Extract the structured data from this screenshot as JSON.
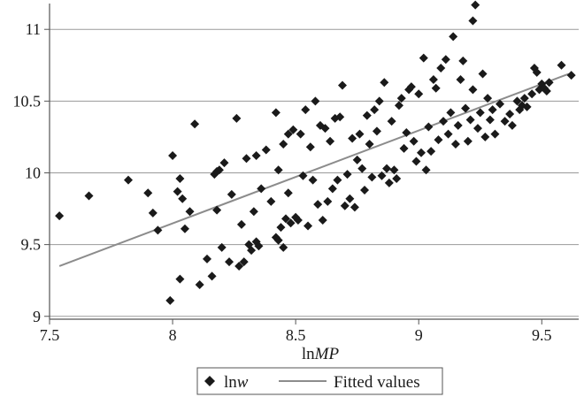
{
  "chart_data": {
    "type": "scatter",
    "title": "",
    "xlabel": {
      "prefix": "ln",
      "italic": "MP"
    },
    "ylabel": "",
    "xlim": [
      7.5,
      9.65
    ],
    "ylim": [
      8.98,
      11.18
    ],
    "x_ticks": [
      "7.5",
      "8",
      "8.5",
      "9",
      "9.5"
    ],
    "y_ticks": [
      "9",
      "9.5",
      "10",
      "10.5",
      "11"
    ],
    "grid": "horizontal",
    "legend_position": "bottom",
    "colors": {
      "points": "#1a1a1a",
      "fit_line": "#8c8c8c",
      "grid": "#9a9a9a"
    },
    "series": [
      {
        "name": {
          "prefix": "ln",
          "italic": "w"
        },
        "kind": "scatter",
        "marker": "diamond",
        "points": [
          [
            7.54,
            9.7
          ],
          [
            7.66,
            9.84
          ],
          [
            7.82,
            9.95
          ],
          [
            7.9,
            9.86
          ],
          [
            7.92,
            9.72
          ],
          [
            7.94,
            9.6
          ],
          [
            7.99,
            9.11
          ],
          [
            8.0,
            10.12
          ],
          [
            8.02,
            9.87
          ],
          [
            8.03,
            9.26
          ],
          [
            8.03,
            9.96
          ],
          [
            8.04,
            9.82
          ],
          [
            8.05,
            9.61
          ],
          [
            8.07,
            9.73
          ],
          [
            8.09,
            10.34
          ],
          [
            8.11,
            9.22
          ],
          [
            8.14,
            9.4
          ],
          [
            8.16,
            9.28
          ],
          [
            8.17,
            9.99
          ],
          [
            8.18,
            10.01
          ],
          [
            8.18,
            9.74
          ],
          [
            8.19,
            10.02
          ],
          [
            8.2,
            9.48
          ],
          [
            8.21,
            10.07
          ],
          [
            8.23,
            9.38
          ],
          [
            8.24,
            9.85
          ],
          [
            8.26,
            10.38
          ],
          [
            8.27,
            9.35
          ],
          [
            8.28,
            9.64
          ],
          [
            8.29,
            9.38
          ],
          [
            8.3,
            10.1
          ],
          [
            8.31,
            9.5
          ],
          [
            8.32,
            9.46
          ],
          [
            8.33,
            9.73
          ],
          [
            8.34,
            10.12
          ],
          [
            8.34,
            9.52
          ],
          [
            8.35,
            9.49
          ],
          [
            8.36,
            9.89
          ],
          [
            8.38,
            10.16
          ],
          [
            8.4,
            9.8
          ],
          [
            8.42,
            10.42
          ],
          [
            8.42,
            9.55
          ],
          [
            8.43,
            10.02
          ],
          [
            8.43,
            9.53
          ],
          [
            8.44,
            9.62
          ],
          [
            8.45,
            10.2
          ],
          [
            8.45,
            9.48
          ],
          [
            8.46,
            9.68
          ],
          [
            8.47,
            10.27
          ],
          [
            8.47,
            9.86
          ],
          [
            8.48,
            9.65
          ],
          [
            8.49,
            10.3
          ],
          [
            8.5,
            9.69
          ],
          [
            8.51,
            9.67
          ],
          [
            8.52,
            10.27
          ],
          [
            8.53,
            9.98
          ],
          [
            8.54,
            10.44
          ],
          [
            8.55,
            9.63
          ],
          [
            8.56,
            10.18
          ],
          [
            8.57,
            9.95
          ],
          [
            8.58,
            10.5
          ],
          [
            8.59,
            9.78
          ],
          [
            8.6,
            10.33
          ],
          [
            8.61,
            9.67
          ],
          [
            8.62,
            10.31
          ],
          [
            8.63,
            9.8
          ],
          [
            8.64,
            10.22
          ],
          [
            8.65,
            9.89
          ],
          [
            8.66,
            10.38
          ],
          [
            8.67,
            9.95
          ],
          [
            8.68,
            10.39
          ],
          [
            8.69,
            10.61
          ],
          [
            8.7,
            9.77
          ],
          [
            8.71,
            9.99
          ],
          [
            8.72,
            9.82
          ],
          [
            8.73,
            10.24
          ],
          [
            8.74,
            9.76
          ],
          [
            8.75,
            10.09
          ],
          [
            8.76,
            10.27
          ],
          [
            8.77,
            10.03
          ],
          [
            8.78,
            9.88
          ],
          [
            8.79,
            10.4
          ],
          [
            8.8,
            10.2
          ],
          [
            8.81,
            9.97
          ],
          [
            8.82,
            10.44
          ],
          [
            8.83,
            10.29
          ],
          [
            8.84,
            10.5
          ],
          [
            8.85,
            9.98
          ],
          [
            8.86,
            10.63
          ],
          [
            8.87,
            10.03
          ],
          [
            8.88,
            9.93
          ],
          [
            8.89,
            10.36
          ],
          [
            8.9,
            10.02
          ],
          [
            8.91,
            9.96
          ],
          [
            8.92,
            10.47
          ],
          [
            8.93,
            10.52
          ],
          [
            8.94,
            10.17
          ],
          [
            8.95,
            10.28
          ],
          [
            8.96,
            10.58
          ],
          [
            8.97,
            10.6
          ],
          [
            8.98,
            10.22
          ],
          [
            8.99,
            10.08
          ],
          [
            9.0,
            10.55
          ],
          [
            9.01,
            10.14
          ],
          [
            9.02,
            10.8
          ],
          [
            9.03,
            10.02
          ],
          [
            9.04,
            10.32
          ],
          [
            9.05,
            10.15
          ],
          [
            9.06,
            10.65
          ],
          [
            9.07,
            10.59
          ],
          [
            9.08,
            10.23
          ],
          [
            9.09,
            10.73
          ],
          [
            9.1,
            10.36
          ],
          [
            9.11,
            10.79
          ],
          [
            9.12,
            10.27
          ],
          [
            9.13,
            10.42
          ],
          [
            9.14,
            10.95
          ],
          [
            9.15,
            10.2
          ],
          [
            9.16,
            10.33
          ],
          [
            9.17,
            10.65
          ],
          [
            9.18,
            10.78
          ],
          [
            9.19,
            10.45
          ],
          [
            9.2,
            10.22
          ],
          [
            9.21,
            10.37
          ],
          [
            9.22,
            10.58
          ],
          [
            9.22,
            11.06
          ],
          [
            9.23,
            11.17
          ],
          [
            9.24,
            10.31
          ],
          [
            9.25,
            10.42
          ],
          [
            9.26,
            10.69
          ],
          [
            9.27,
            10.25
          ],
          [
            9.28,
            10.52
          ],
          [
            9.29,
            10.37
          ],
          [
            9.3,
            10.44
          ],
          [
            9.31,
            10.27
          ],
          [
            9.33,
            10.48
          ],
          [
            9.35,
            10.36
          ],
          [
            9.37,
            10.41
          ],
          [
            9.38,
            10.33
          ],
          [
            9.4,
            10.5
          ],
          [
            9.41,
            10.44
          ],
          [
            9.42,
            10.47
          ],
          [
            9.43,
            10.52
          ],
          [
            9.44,
            10.46
          ],
          [
            9.46,
            10.55
          ],
          [
            9.47,
            10.73
          ],
          [
            9.48,
            10.7
          ],
          [
            9.49,
            10.58
          ],
          [
            9.5,
            10.62
          ],
          [
            9.51,
            10.59
          ],
          [
            9.52,
            10.57
          ],
          [
            9.53,
            10.63
          ],
          [
            9.58,
            10.75
          ],
          [
            9.62,
            10.68
          ]
        ]
      },
      {
        "name": "Fitted values",
        "kind": "line",
        "x": [
          7.54,
          9.61
        ],
        "y": [
          9.35,
          10.69
        ]
      }
    ]
  }
}
